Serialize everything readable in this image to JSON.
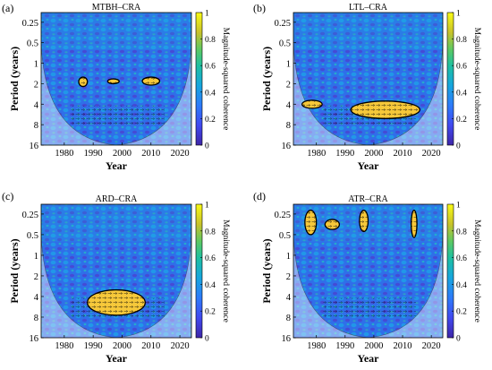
{
  "chart_data": [
    {
      "type": "heatmap",
      "panel_label": "(a)",
      "title": "MTBH–CRA",
      "xlabel": "Year",
      "ylabel": "Period (years)",
      "colorbar_label": "Magnitude-squared coherence",
      "x_ticks": [
        "1980",
        "1990",
        "2000",
        "2010",
        "2020"
      ],
      "y_ticks": [
        "0.25",
        "0.5",
        "1",
        "2",
        "4",
        "8",
        "16"
      ],
      "colorbar_ticks": [
        "0",
        "0.2",
        "0.4",
        "0.6",
        "0.8",
        "1"
      ],
      "xlim": [
        1972,
        2024
      ],
      "ylim": [
        0.18,
        16
      ],
      "y_scale": "log2",
      "clim": [
        0,
        1
      ],
      "colormap": "parula",
      "grid": false,
      "significant_regions": [
        {
          "year_start": 1985,
          "year_end": 1988,
          "period_low": 1.6,
          "period_high": 2.2
        },
        {
          "year_start": 1995,
          "year_end": 1999,
          "period_low": 1.7,
          "period_high": 2.0
        },
        {
          "year_start": 2007,
          "year_end": 2013,
          "period_low": 1.6,
          "period_high": 2.1
        }
      ]
    },
    {
      "type": "heatmap",
      "panel_label": "(b)",
      "title": "LTL–CRA",
      "xlabel": "Year",
      "ylabel": "Period (years)",
      "colorbar_label": "Magnitude-squared coherence",
      "x_ticks": [
        "1980",
        "1990",
        "2000",
        "2010",
        "2020"
      ],
      "y_ticks": [
        "0.25",
        "0.5",
        "1",
        "2",
        "4",
        "8",
        "16"
      ],
      "colorbar_ticks": [
        "0",
        "0.2",
        "0.4",
        "0.6",
        "0.8",
        "1"
      ],
      "xlim": [
        1972,
        2024
      ],
      "ylim": [
        0.18,
        16
      ],
      "y_scale": "log2",
      "clim": [
        0,
        1
      ],
      "colormap": "parula",
      "grid": false,
      "significant_regions": [
        {
          "year_start": 1992,
          "year_end": 2016,
          "period_low": 3.6,
          "period_high": 6.5
        },
        {
          "year_start": 1975,
          "year_end": 1982,
          "period_low": 3.5,
          "period_high": 4.6
        }
      ]
    },
    {
      "type": "heatmap",
      "panel_label": "(c)",
      "title": "ARD–CRA",
      "xlabel": "Year",
      "ylabel": "Period (years)",
      "colorbar_label": "Magnitude-squared coherence",
      "x_ticks": [
        "1980",
        "1990",
        "2000",
        "2010",
        "2020"
      ],
      "y_ticks": [
        "0.25",
        "0.5",
        "1",
        "2",
        "4",
        "8",
        "16"
      ],
      "colorbar_ticks": [
        "0",
        "0.2",
        "0.4",
        "0.6",
        "0.8",
        "1"
      ],
      "xlim": [
        1972,
        2024
      ],
      "ylim": [
        0.18,
        16
      ],
      "y_scale": "log2",
      "clim": [
        0,
        1
      ],
      "colormap": "parula",
      "grid": false,
      "significant_regions": [
        {
          "year_start": 1988,
          "year_end": 2008,
          "period_low": 3.2,
          "period_high": 7.5
        }
      ]
    },
    {
      "type": "heatmap",
      "panel_label": "(d)",
      "title": "ATR–CRA",
      "xlabel": "Year",
      "ylabel": "Period (years)",
      "colorbar_label": "Magnitude-squared coherence",
      "x_ticks": [
        "1980",
        "1990",
        "2000",
        "2010",
        "2020"
      ],
      "y_ticks": [
        "0.25",
        "0.5",
        "1",
        "2",
        "4",
        "8",
        "16"
      ],
      "colorbar_ticks": [
        "0",
        "0.2",
        "0.4",
        "0.6",
        "0.8",
        "1"
      ],
      "xlim": [
        1972,
        2024
      ],
      "ylim": [
        0.18,
        16
      ],
      "y_scale": "log2",
      "clim": [
        0,
        1
      ],
      "colormap": "parula",
      "grid": false,
      "significant_regions": [
        {
          "year_start": 1976,
          "year_end": 1980,
          "period_low": 0.22,
          "period_high": 0.5
        },
        {
          "year_start": 1995,
          "year_end": 1998,
          "period_low": 0.22,
          "period_high": 0.45
        },
        {
          "year_start": 2013,
          "year_end": 2015,
          "period_low": 0.22,
          "period_high": 0.55
        },
        {
          "year_start": 1983,
          "year_end": 1988,
          "period_low": 0.3,
          "period_high": 0.42
        }
      ]
    }
  ]
}
